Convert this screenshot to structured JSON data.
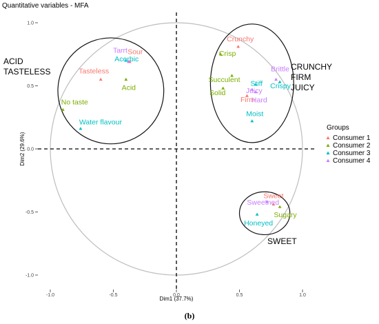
{
  "chart_data": {
    "type": "scatter",
    "title": "Quantitative variables - MFA",
    "xlabel": "Dim1 (37.7%)",
    "ylabel": "Dim2 (29.6%)",
    "xlim": [
      -1.1,
      1.1
    ],
    "ylim": [
      -1.1,
      1.1
    ],
    "x_ticks": [
      -1.0,
      -0.5,
      0.0,
      0.5,
      1.0
    ],
    "y_ticks": [
      -1.0,
      -0.5,
      0.0,
      0.5,
      1.0
    ],
    "x_tick_labels": [
      "-1.0",
      "-0.5",
      "0.0",
      "0.5",
      "1.0"
    ],
    "y_tick_labels": [
      "-1.0",
      "-0.5",
      "0.0",
      "0.5",
      "1.0"
    ],
    "grid": false,
    "caption": "(b)",
    "legend": {
      "title": "Groups",
      "position": "right",
      "entries": [
        {
          "name": "Consumer 1",
          "color": "#f8766d"
        },
        {
          "name": "Consumer 2",
          "color": "#7cae00"
        },
        {
          "name": "Consumer 3",
          "color": "#00bfc4"
        },
        {
          "name": "Consumer 4",
          "color": "#c77cff"
        }
      ]
    },
    "series": [
      {
        "name": "Consumer 1",
        "color": "#f8766d",
        "points": [
          {
            "label": "Sour",
            "x": -0.37,
            "y": 0.69
          },
          {
            "label": "Tasteless",
            "x": -0.6,
            "y": 0.55
          },
          {
            "label": "Crunchy",
            "x": 0.49,
            "y": 0.81
          },
          {
            "label": "Firm",
            "x": 0.56,
            "y": 0.42
          },
          {
            "label": "Sweet",
            "x": 0.77,
            "y": -0.44
          }
        ]
      },
      {
        "name": "Consumer 2",
        "color": "#7cae00",
        "points": [
          {
            "label": "Acid",
            "x": -0.4,
            "y": 0.55
          },
          {
            "label": "No taste",
            "x": -0.9,
            "y": 0.31
          },
          {
            "label": "Crisp",
            "x": 0.35,
            "y": 0.75
          },
          {
            "label": "Succulent",
            "x": 0.44,
            "y": 0.58
          },
          {
            "label": "Solid",
            "x": 0.37,
            "y": 0.48
          },
          {
            "label": "Sugary",
            "x": 0.82,
            "y": -0.46
          }
        ]
      },
      {
        "name": "Consumer 3",
        "color": "#00bfc4",
        "points": [
          {
            "label": "Acerbic",
            "x": -0.4,
            "y": 0.7
          },
          {
            "label": "Water flavour",
            "x": -0.76,
            "y": 0.16
          },
          {
            "label": "Stiff",
            "x": 0.63,
            "y": 0.51
          },
          {
            "label": "Crispy",
            "x": 0.82,
            "y": 0.53
          },
          {
            "label": "Moist",
            "x": 0.6,
            "y": 0.22
          },
          {
            "label": "Honeyed",
            "x": 0.64,
            "y": -0.52
          }
        ]
      },
      {
        "name": "Consumer 4",
        "color": "#c77cff",
        "points": [
          {
            "label": "Tarrt",
            "x": -0.38,
            "y": 0.69
          },
          {
            "label": "Brittle",
            "x": 0.79,
            "y": 0.55
          },
          {
            "label": "Juicy",
            "x": 0.6,
            "y": 0.47
          },
          {
            "label": "Hard",
            "x": 0.63,
            "y": 0.45
          },
          {
            "label": "Sweetned",
            "x": 0.72,
            "y": -0.42
          }
        ]
      }
    ],
    "group_ellipses": [
      {
        "label": "ACID\nTASTELESS",
        "cx": -0.52,
        "cy": 0.46,
        "rx": 0.42,
        "ry": 0.42
      },
      {
        "label": "CRUNCHY\nFIRM\nJUICY",
        "cx": 0.6,
        "cy": 0.52,
        "rx": 0.33,
        "ry": 0.47
      },
      {
        "label": "SWEET",
        "cx": 0.7,
        "cy": -0.51,
        "rx": 0.2,
        "ry": 0.17
      }
    ]
  }
}
